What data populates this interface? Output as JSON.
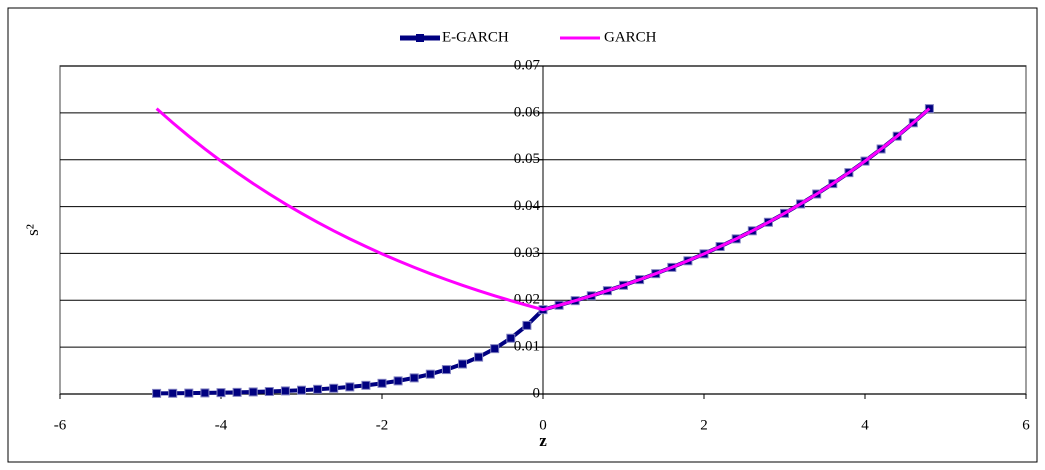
{
  "chart_data": {
    "type": "line",
    "x_label": "z",
    "y_label": "s²",
    "x": [
      -4.8,
      -4.6,
      -4.4,
      -4.2,
      -4.0,
      -3.8,
      -3.6,
      -3.4,
      -3.2,
      -3.0,
      -2.8,
      -2.6,
      -2.4,
      -2.2,
      -2.0,
      -1.8,
      -1.6,
      -1.4,
      -1.2,
      -1.0,
      -0.8,
      -0.6,
      -0.4,
      -0.2,
      0,
      0.2,
      0.4,
      0.6,
      0.8,
      1.0,
      1.2,
      1.4,
      1.6,
      1.8,
      2.0,
      2.2,
      2.4,
      2.6,
      2.8,
      3.0,
      3.2,
      3.4,
      3.6,
      3.8,
      4.0,
      4.2,
      4.4,
      4.6,
      4.8
    ],
    "series": [
      {
        "name": "E-GARCH",
        "color": "#000080",
        "marker": "square",
        "values": [
          0.00013,
          0.00015,
          0.00019,
          0.00023,
          0.00029,
          0.00035,
          0.00044,
          0.00053,
          0.00066,
          0.00081,
          0.001,
          0.00122,
          0.00151,
          0.00185,
          0.00228,
          0.0028,
          0.00344,
          0.00423,
          0.00521,
          0.0064,
          0.00787,
          0.00968,
          0.0119,
          0.01464,
          0.018,
          0.01894,
          0.01992,
          0.02096,
          0.02205,
          0.0232,
          0.02441,
          0.02568,
          0.02702,
          0.02843,
          0.02991,
          0.03147,
          0.03311,
          0.03483,
          0.03665,
          0.03856,
          0.04056,
          0.04268,
          0.0449,
          0.04724,
          0.0497,
          0.05229,
          0.05502,
          0.05788,
          0.0609
        ]
      },
      {
        "name": "GARCH",
        "color": "#ff00ff",
        "marker": "none",
        "values": [
          0.0609,
          0.05788,
          0.05502,
          0.05229,
          0.0497,
          0.04724,
          0.0449,
          0.04268,
          0.04056,
          0.03856,
          0.03665,
          0.03483,
          0.03311,
          0.03147,
          0.02991,
          0.02843,
          0.02702,
          0.02568,
          0.02441,
          0.0232,
          0.02205,
          0.02096,
          0.01992,
          0.01894,
          0.018,
          0.01894,
          0.01992,
          0.02096,
          0.02205,
          0.0232,
          0.02441,
          0.02568,
          0.02702,
          0.02843,
          0.02991,
          0.03147,
          0.03311,
          0.03483,
          0.03665,
          0.03856,
          0.04056,
          0.04268,
          0.0449,
          0.04724,
          0.0497,
          0.05229,
          0.05502,
          0.05788,
          0.0609
        ]
      }
    ],
    "xlim": [
      -6,
      6
    ],
    "xticks": [
      -6,
      -4,
      -2,
      0,
      2,
      4,
      6
    ],
    "ylim": [
      0,
      0.07
    ],
    "yticks": [
      0,
      0.01,
      0.02,
      0.03,
      0.04,
      0.05,
      0.06,
      0.07
    ],
    "grid": true,
    "legend": "top"
  }
}
